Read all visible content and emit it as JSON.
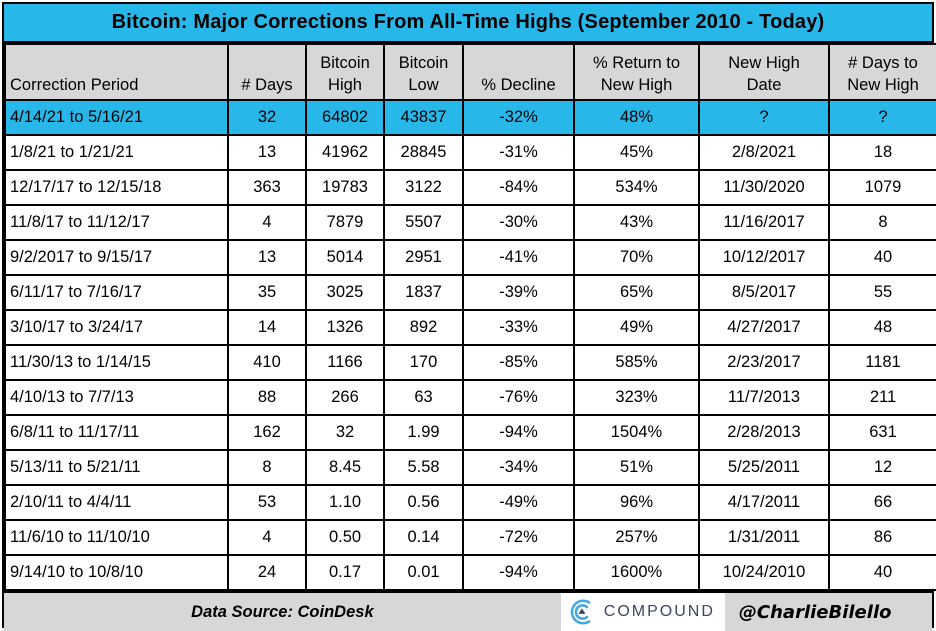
{
  "title": "Bitcoin: Major Corrections From All-Time Highs (September 2010 - Today)",
  "chart_data": {
    "type": "table",
    "title": "Bitcoin: Major Corrections From All-Time Highs (September 2010 - Today)",
    "columns": [
      "Correction Period",
      "# Days",
      "Bitcoin\nHigh",
      "Bitcoin\nLow",
      "% Decline",
      "% Return to\nNew High",
      "New High\nDate",
      "# Days to\nNew High"
    ],
    "rows": [
      [
        "4/14/21 to 5/16/21",
        "32",
        "64802",
        "43837",
        "-32%",
        "48%",
        "?",
        "?"
      ],
      [
        "1/8/21 to 1/21/21",
        "13",
        "41962",
        "28845",
        "-31%",
        "45%",
        "2/8/2021",
        "18"
      ],
      [
        "12/17/17 to 12/15/18",
        "363",
        "19783",
        "3122",
        "-84%",
        "534%",
        "11/30/2020",
        "1079"
      ],
      [
        "11/8/17 to 11/12/17",
        "4",
        "7879",
        "5507",
        "-30%",
        "43%",
        "11/16/2017",
        "8"
      ],
      [
        "9/2/2017 to 9/15/17",
        "13",
        "5014",
        "2951",
        "-41%",
        "70%",
        "10/12/2017",
        "40"
      ],
      [
        "6/11/17 to 7/16/17",
        "35",
        "3025",
        "1837",
        "-39%",
        "65%",
        "8/5/2017",
        "55"
      ],
      [
        "3/10/17 to 3/24/17",
        "14",
        "1326",
        "892",
        "-33%",
        "49%",
        "4/27/2017",
        "48"
      ],
      [
        "11/30/13 to 1/14/15",
        "410",
        "1166",
        "170",
        "-85%",
        "585%",
        "2/23/2017",
        "1181"
      ],
      [
        "4/10/13 to 7/7/13",
        "88",
        "266",
        "63",
        "-76%",
        "323%",
        "11/7/2013",
        "211"
      ],
      [
        "6/8/11 to 11/17/11",
        "162",
        "32",
        "1.99",
        "-94%",
        "1504%",
        "2/28/2013",
        "631"
      ],
      [
        "5/13/11 to 5/21/11",
        "8",
        "8.45",
        "5.58",
        "-34%",
        "51%",
        "5/25/2011",
        "12"
      ],
      [
        "2/10/11 to 4/4/11",
        "53",
        "1.10",
        "0.56",
        "-49%",
        "96%",
        "4/17/2011",
        "66"
      ],
      [
        "11/6/10 to 11/10/10",
        "4",
        "0.50",
        "0.14",
        "-72%",
        "257%",
        "1/31/2011",
        "86"
      ],
      [
        "9/14/10 to 10/8/10",
        "24",
        "0.17",
        "0.01",
        "-94%",
        "1600%",
        "10/24/2010",
        "40"
      ]
    ],
    "highlight_row_index": 0
  },
  "footer": {
    "data_source": "Data Source: CoinDesk",
    "logo_text": "COMPOUND",
    "handle": "@CharlieBilello"
  },
  "colors": {
    "accent_cyan": "#27b7e9",
    "band_gray": "#d7d7d7",
    "logo_blue": "#41a8e8",
    "logo_navy": "#3b4763"
  }
}
